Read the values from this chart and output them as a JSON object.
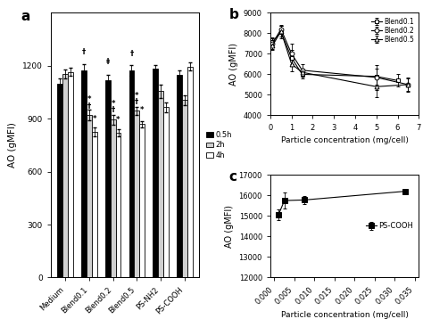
{
  "panel_a": {
    "categories": [
      "Medium",
      "Blend0.1",
      "Blend0.2",
      "Blend0.5",
      "PS-NH2",
      "PS-COOH"
    ],
    "bar_width": 0.22,
    "series_order": [
      "0.5h",
      "2h",
      "4h"
    ],
    "series": {
      "0.5h": {
        "color": "#000000",
        "values": [
          1100,
          1175,
          1120,
          1175,
          1185,
          1150
        ],
        "errors": [
          30,
          35,
          30,
          30,
          20,
          25
        ]
      },
      "2h": {
        "color": "#ffffff",
        "values": [
          1155,
          920,
          895,
          945,
          1055,
          1005
        ],
        "errors": [
          25,
          30,
          28,
          22,
          38,
          28
        ]
      },
      "4h": {
        "color": "#ffffff",
        "values": [
          1165,
          825,
          820,
          870,
          965,
          1195
        ],
        "errors": [
          22,
          25,
          22,
          18,
          28,
          22
        ]
      }
    },
    "ylim": [
      0,
      1500
    ],
    "yticks": [
      0,
      300,
      600,
      900,
      1200
    ],
    "ylabel": "AO (gMFI)",
    "panel_label": "a",
    "sig_markers": [
      [
        1,
        0,
        "†",
        1255
      ],
      [
        1,
        1,
        "*",
        988
      ],
      [
        1,
        1,
        "†",
        948
      ],
      [
        1,
        2,
        "*",
        875
      ],
      [
        2,
        0,
        "‡",
        1200
      ],
      [
        2,
        1,
        "*",
        960
      ],
      [
        2,
        1,
        "†",
        925
      ],
      [
        2,
        2,
        "*",
        870
      ],
      [
        3,
        0,
        "†",
        1245
      ],
      [
        3,
        1,
        "*",
        1008
      ],
      [
        3,
        1,
        "†",
        970
      ],
      [
        3,
        2,
        "*",
        925
      ]
    ]
  },
  "panel_b": {
    "series_order": [
      "Blend0.1",
      "Blend0.2",
      "Blend0.5"
    ],
    "markers": {
      "Blend0.1": "s",
      "Blend0.2": "o",
      "Blend0.5": "^"
    },
    "series": {
      "Blend0.1": {
        "x": [
          0.1,
          0.5,
          1.0,
          1.5,
          5.0,
          6.0
        ],
        "y": [
          7600,
          8050,
          6800,
          6000,
          5900,
          5700
        ],
        "yerr": [
          200,
          300,
          400,
          200,
          400,
          300
        ]
      },
      "Blend0.2": {
        "x": [
          0.1,
          0.5,
          1.0,
          1.5,
          5.0,
          6.5
        ],
        "y": [
          7500,
          8200,
          7000,
          6200,
          5850,
          5500
        ],
        "yerr": [
          250,
          200,
          500,
          300,
          600,
          300
        ]
      },
      "Blend0.5": {
        "x": [
          0.1,
          0.5,
          1.0,
          1.5,
          5.0,
          6.5
        ],
        "y": [
          7400,
          8100,
          6500,
          6100,
          5400,
          5500
        ],
        "yerr": [
          200,
          250,
          350,
          200,
          500,
          350
        ]
      }
    },
    "xlim": [
      0,
      7
    ],
    "ylim": [
      4000,
      9000
    ],
    "yticks": [
      4000,
      5000,
      6000,
      7000,
      8000,
      9000
    ],
    "xticks": [
      0,
      1,
      2,
      3,
      4,
      5,
      6,
      7
    ],
    "xlabel": "Particle concentration (mg/cell)",
    "ylabel": "AO (gMFI)",
    "panel_label": "b"
  },
  "panel_c": {
    "series": {
      "PS-COOH": {
        "x": [
          0.001,
          0.0025,
          0.0075,
          0.0325
        ],
        "y": [
          15050,
          15750,
          15780,
          16200
        ],
        "yerr": [
          250,
          400,
          200,
          120
        ]
      }
    },
    "xlim": [
      -0.001,
      0.036
    ],
    "ylim": [
      12000,
      17000
    ],
    "yticks": [
      12000,
      13000,
      14000,
      15000,
      16000,
      17000
    ],
    "xticks": [
      0.0,
      0.005,
      0.01,
      0.015,
      0.02,
      0.025,
      0.03,
      0.035
    ],
    "xlabel": "Particle concentration (mg/cell)",
    "ylabel": "AO (gMFI)",
    "panel_label": "c"
  }
}
